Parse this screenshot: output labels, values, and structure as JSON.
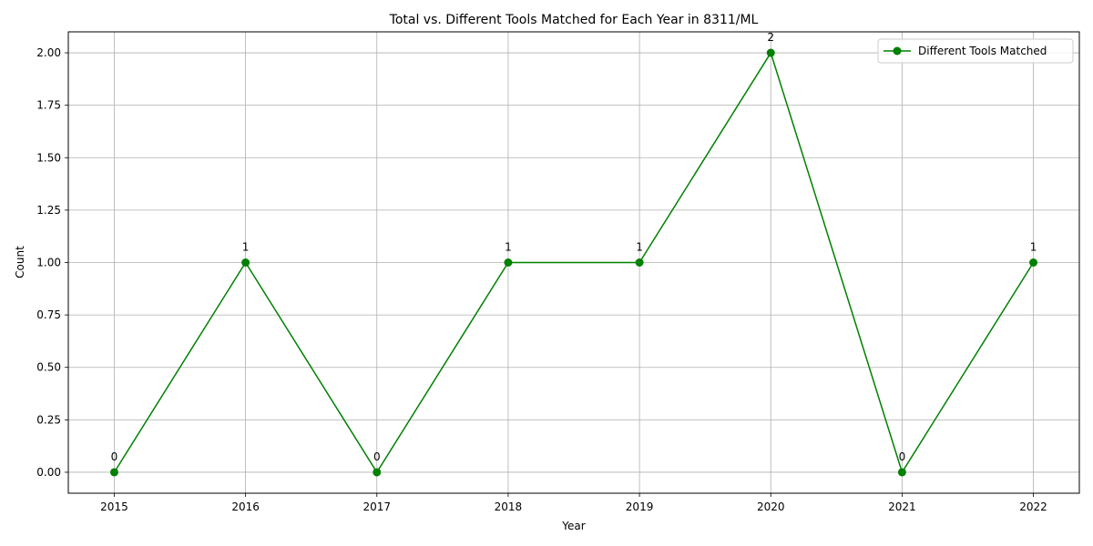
{
  "chart_data": {
    "type": "line",
    "title": "Total vs. Different Tools Matched for Each Year in 8311/ML",
    "xlabel": "Year",
    "ylabel": "Count",
    "x": [
      2015,
      2016,
      2017,
      2018,
      2019,
      2020,
      2021,
      2022
    ],
    "xticks": [
      "2015",
      "2016",
      "2017",
      "2018",
      "2019",
      "2020",
      "2021",
      "2022"
    ],
    "xlim": [
      2014.65,
      2022.35
    ],
    "ylim": [
      -0.1,
      2.1
    ],
    "yticks": [
      "0.00",
      "0.25",
      "0.50",
      "0.75",
      "1.00",
      "1.25",
      "1.50",
      "1.75",
      "2.00"
    ],
    "grid": true,
    "legend_position": "top-right",
    "series": [
      {
        "name": "Different Tools Matched",
        "values": [
          0,
          1,
          0,
          1,
          1,
          2,
          0,
          1
        ],
        "labels": [
          "0",
          "1",
          "0",
          "1",
          "1",
          "2",
          "0",
          "1"
        ],
        "color": "#008000",
        "marker": "circle"
      }
    ]
  }
}
